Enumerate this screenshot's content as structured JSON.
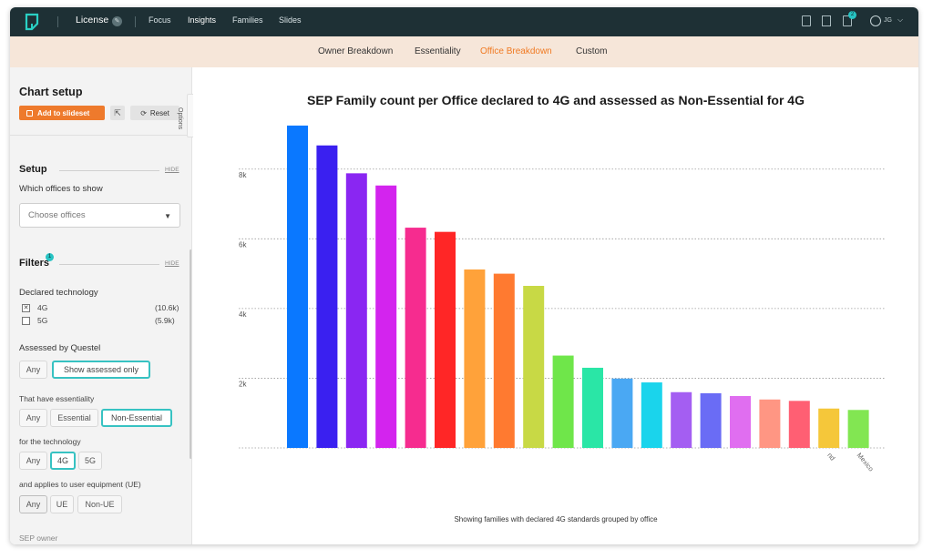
{
  "topbar": {
    "license_label": "License",
    "nav": [
      "Focus",
      "Insights",
      "Families",
      "Slides"
    ],
    "active_nav": "Insights",
    "notification_count": "2",
    "user_initials": "JG"
  },
  "tabs": {
    "items": [
      "Owner Breakdown",
      "Essentiality",
      "Office Breakdown",
      "Custom"
    ],
    "active": "Office Breakdown",
    "active_color": "#f07a23"
  },
  "sidebar": {
    "title": "Chart setup",
    "add_button": "Add to slideset",
    "reset_button": "Reset",
    "options_label": "Options",
    "setup": {
      "heading": "Setup",
      "hide": "HIDE",
      "offices_label": "Which offices to show",
      "offices_placeholder": "Choose offices"
    },
    "filters": {
      "heading": "Filters",
      "badge": "1",
      "hide": "HIDE",
      "declared_label": "Declared technology",
      "tech": [
        {
          "label": "4G",
          "count": "(10.6k)",
          "checked": true
        },
        {
          "label": "5G",
          "count": "(5.9k)",
          "checked": false
        }
      ],
      "assessed_label": "Assessed by Questel",
      "assessed_opts": [
        "Any",
        "Show assessed only"
      ],
      "essentiality_label": "That have essentiality",
      "essentiality_opts": [
        "Any",
        "Essential",
        "Non-Essential"
      ],
      "technology_label": "for the technology",
      "technology_opts": [
        "Any",
        "4G",
        "5G"
      ],
      "ue_label": "and applies to user equipment (UE)",
      "ue_opts": [
        "Any",
        "UE",
        "Non-UE"
      ],
      "owner_label": "SEP owner"
    }
  },
  "chart_data": {
    "type": "bar",
    "title": "SEP Family count per Office declared to 4G and assessed as Non-Essential for 4G",
    "caption": "Showing families with declared 4G standards grouped by office",
    "ylim": [
      0,
      9300
    ],
    "yticks": [
      2000,
      4000,
      6000,
      8000
    ],
    "ytick_labels": [
      "2k",
      "4k",
      "6k",
      "8k"
    ],
    "grid": true,
    "values": [
      9250,
      8680,
      7880,
      7530,
      6320,
      6200,
      5120,
      5000,
      4650,
      2650,
      2300,
      1990,
      1880,
      1600,
      1570,
      1490,
      1390,
      1350,
      1130,
      1090
    ],
    "colors": [
      "#0a78ff",
      "#3a20f0",
      "#8a26f2",
      "#d324ee",
      "#f62c8f",
      "#ff2626",
      "#ffa23a",
      "#ff7a30",
      "#c8d945",
      "#6fe64a",
      "#2ae6a6",
      "#4aa8f3",
      "#1ad4ec",
      "#a45ef2",
      "#6a6cf5",
      "#e06ef0",
      "#ff9683",
      "#ff5f73",
      "#f5c73a",
      "#82e652"
    ],
    "visible_xtick_labels": [
      {
        "index": 18,
        "text": "nd"
      },
      {
        "index": 19,
        "text": "Mexico"
      }
    ]
  }
}
